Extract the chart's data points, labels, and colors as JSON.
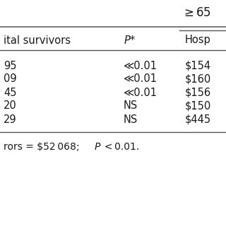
{
  "background_color": "#ffffff",
  "text_color": "#1a1a1a",
  "line_color": "#555555",
  "header_ge65": "≥65",
  "col1_header": "-ital survivors",
  "col2_header": "P*",
  "col3_header": "Hosp",
  "col1_values": [
    "95",
    "09",
    "45",
    "20",
    "29"
  ],
  "col2_values": [
    "≪0.01",
    "≪0.01",
    "≪0.01",
    "NS",
    "NS"
  ],
  "col3_values": [
    "$154",
    "$160",
    "$156",
    "$150",
    "$445"
  ],
  "footnote_plain": "rors = $52 068;",
  "footnote_italic": "P",
  "footnote_end": " < 0.01.",
  "font_size": 10.5,
  "header_font_size": 12,
  "footnote_font_size": 10
}
